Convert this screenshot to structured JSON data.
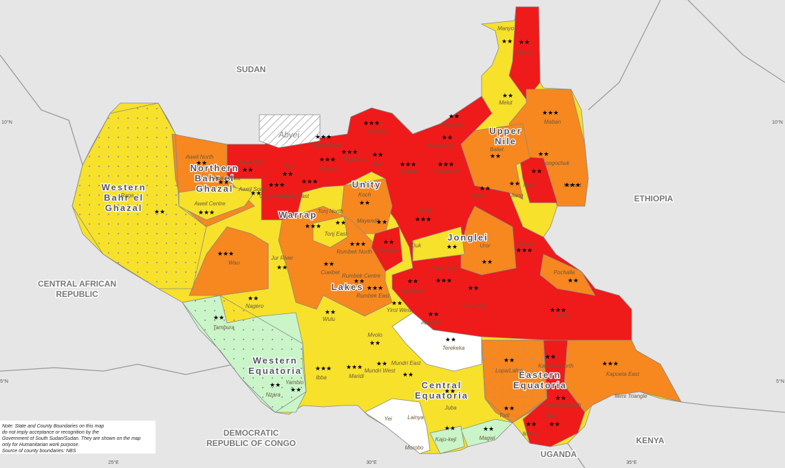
{
  "countries": [
    {
      "lines": [
        "SUDAN"
      ]
    },
    {
      "lines": [
        "ETHIOPIA"
      ]
    },
    {
      "lines": [
        "CENTRAL AFRICAN",
        "REPUBLIC"
      ]
    },
    {
      "lines": [
        "DEMOCRATIC",
        "REPUBLIC OF CONGO"
      ]
    },
    {
      "lines": [
        "KENYA"
      ]
    },
    {
      "lines": [
        "UGANDA"
      ]
    }
  ],
  "states": [
    {
      "lines": [
        "Western",
        "Bahr el",
        "Ghazal"
      ]
    },
    {
      "lines": [
        "Northern",
        "Bahr el",
        "Ghazal"
      ]
    },
    {
      "lines": [
        "Warrap"
      ]
    },
    {
      "lines": [
        "Unity"
      ]
    },
    {
      "lines": [
        "Upper",
        "Nile"
      ]
    },
    {
      "lines": [
        "Jonglei"
      ]
    },
    {
      "lines": [
        "Lakes"
      ]
    },
    {
      "lines": [
        "Western",
        "Equatoria"
      ]
    },
    {
      "lines": [
        "Central",
        "Equatoria"
      ]
    },
    {
      "lines": [
        "Eastern",
        "Equatoria"
      ]
    },
    {
      "lines": [
        "Abyei"
      ]
    }
  ],
  "counties": [
    {
      "label": "Manyo",
      "stars": "★★"
    },
    {
      "label": "Renk",
      "stars": "★★"
    },
    {
      "label": "Melut",
      "stars": "★★"
    },
    {
      "label": "Maban",
      "stars": "★★★"
    },
    {
      "label": "Fashoda",
      "stars": "★★"
    },
    {
      "label": "Panyikang",
      "stars": "★★"
    },
    {
      "label": "Baliet",
      "stars": "★★"
    },
    {
      "label": "Longochuk",
      "stars": "★★"
    },
    {
      "label": "Maiwut",
      "stars": "★★★"
    },
    {
      "label": "Nasir",
      "stars": "★★"
    },
    {
      "label": "Ulang",
      "stars": "★★"
    },
    {
      "label": "Nyirol",
      "stars": "★★"
    },
    {
      "label": "Pariang",
      "stars": "★★★"
    },
    {
      "label": "Abiemnhom",
      "stars": "★★★"
    },
    {
      "label": "Mayom",
      "stars": "★★★"
    },
    {
      "label": "Rubkona",
      "stars": "★★★"
    },
    {
      "label": "Guit",
      "stars": "★★"
    },
    {
      "label": "Fangak",
      "stars": "★★★"
    },
    {
      "label": "Canal/Pigi",
      "stars": "★★★"
    },
    {
      "label": "Koch",
      "stars": "★★"
    },
    {
      "label": "Mayendit",
      "stars": "★★"
    },
    {
      "label": "Panyijiar",
      "stars": "★★"
    },
    {
      "label": "Ayod",
      "stars": "★★★"
    },
    {
      "label": "Uror",
      "stars": "★★"
    },
    {
      "label": "Akobo",
      "stars": "★★★"
    },
    {
      "label": "Duk",
      "stars": "★★"
    },
    {
      "label": "Twic East",
      "stars": "★★★"
    },
    {
      "label": "Pochalla",
      "stars": "★★"
    },
    {
      "label": "Bor South",
      "stars": "★★"
    },
    {
      "label": "Pibor",
      "stars": "★★★"
    },
    {
      "label": "Yirol East",
      "stars": "★★"
    },
    {
      "label": "Yirol West",
      "stars": "★★"
    },
    {
      "label": "Awerial",
      "stars": "★★"
    },
    {
      "label": "Aweil North",
      "stars": "★★"
    },
    {
      "label": "Aweil East",
      "stars": "★★"
    },
    {
      "label": "Aweil West",
      "stars": "★★"
    },
    {
      "label": "Aweil South",
      "stars": "★★"
    },
    {
      "label": "Aweil Centre",
      "stars": "★★★"
    },
    {
      "label": "Twic",
      "stars": "★★"
    },
    {
      "label": "Gogrial West",
      "stars": "★★★"
    },
    {
      "label": "Gogrial East",
      "stars": "★★★"
    },
    {
      "label": "Tonj North",
      "stars": "★★★"
    },
    {
      "label": "Tonj East",
      "stars": "★★"
    },
    {
      "label": "Raga",
      "stars": "★★"
    },
    {
      "label": "Wau",
      "stars": "★★★"
    },
    {
      "label": "Jur River",
      "stars": "★★"
    },
    {
      "label": "Rumbek North",
      "stars": "★★★"
    },
    {
      "label": "Cueibet",
      "stars": "★★"
    },
    {
      "label": "Rumbek Centre",
      "stars": "★★"
    },
    {
      "label": "Rumbek East",
      "stars": "★★★"
    },
    {
      "label": "Wulu",
      "stars": "★★"
    },
    {
      "label": "Nagero",
      "stars": "★★"
    },
    {
      "label": "Tambura",
      "stars": "★★"
    },
    {
      "label": "Mvolo",
      "stars": "★★"
    },
    {
      "label": "Ibba",
      "stars": "★★★"
    },
    {
      "label": "Maridi",
      "stars": "★★★"
    },
    {
      "label": "Mundri West",
      "stars": "★★"
    },
    {
      "label": "Mundri East",
      "stars": "★★"
    },
    {
      "label": "Yambio",
      "stars": "★★"
    },
    {
      "label": "Nzara",
      "stars": "★★"
    },
    {
      "label": "Terekeka",
      "stars": "★★"
    },
    {
      "label": "Juba",
      "stars": "★★"
    },
    {
      "label": "Yei",
      "stars": ""
    },
    {
      "label": "Lainya",
      "stars": ""
    },
    {
      "label": "Morobo",
      "stars": ""
    },
    {
      "label": "Kajo-keji",
      "stars": "★★"
    },
    {
      "label": "Magwi",
      "stars": "★★"
    },
    {
      "label": "Torit",
      "stars": "★★"
    },
    {
      "label": "Ikotos",
      "stars": "★★"
    },
    {
      "label": "Budi",
      "stars": "★★"
    },
    {
      "label": "Kapoeta North",
      "stars": "★★"
    },
    {
      "label": "Kapoeta South",
      "stars": "★★"
    },
    {
      "label": "Kapoeta East",
      "stars": "★★★"
    },
    {
      "label": "Ilemi Triangle",
      "stars": ""
    },
    {
      "label": "Lopa/Lafon",
      "stars": "★★"
    }
  ],
  "coords": [
    "10°N",
    "10°N",
    "5°N",
    "5°N",
    "25°E",
    "30°E",
    "35°E"
  ],
  "note": [
    "Note: State and County Boundaries on this map",
    "do not imply acceptance or recognition by the",
    "Government of South Sudan/Sudan. They are shown on the map",
    "only for Humanitarian work purpose.",
    "Source of county boundaries: NBS"
  ]
}
